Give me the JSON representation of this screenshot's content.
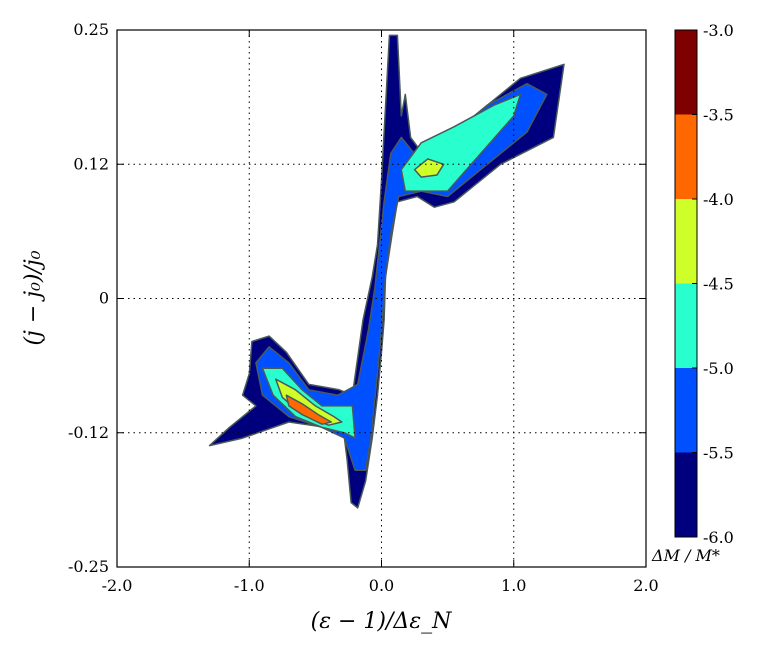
{
  "chart_data": {
    "type": "heatmap",
    "title": "",
    "xlabel": "(ε − 1)/Δε_N",
    "ylabel": "(j − j₀)/j₀",
    "xlim": [
      -2.0,
      2.0
    ],
    "ylim": [
      -0.25,
      0.25
    ],
    "x_ticks": [
      "-2.0",
      "-1.0",
      "0.0",
      "1.0",
      "2.0"
    ],
    "x_tick_values": [
      -2.0,
      -1.0,
      0.0,
      1.0,
      2.0
    ],
    "y_ticks": [
      "-0.25",
      "-0.12",
      "0",
      "0.12",
      "0.25"
    ],
    "y_tick_values": [
      -0.25,
      -0.125,
      0.0,
      0.125,
      0.25
    ],
    "grid": true,
    "colorbar": {
      "label": "ΔM / M*",
      "levels": [
        -6.0,
        -5.5,
        -5.0,
        -4.5,
        -4.0,
        -3.5,
        -3.0
      ],
      "tick_labels": [
        "-6.0",
        "-5.5",
        "-5.0",
        "-4.5",
        "-4.0",
        "-3.5",
        "-3.0"
      ],
      "colors": [
        "#00007f",
        "#0050ff",
        "#29ffce",
        "#ceff29",
        "#ff6800",
        "#7f0000"
      ]
    },
    "regions": [
      {
        "level": -6.0,
        "polygon": [
          [
            0.0,
            0.11
          ],
          [
            0.06,
            0.245
          ],
          [
            0.12,
            0.245
          ],
          [
            0.15,
            0.17
          ],
          [
            0.18,
            0.19
          ],
          [
            0.22,
            0.15
          ],
          [
            0.4,
            0.12
          ],
          [
            0.75,
            0.175
          ],
          [
            1.05,
            0.205
          ],
          [
            1.38,
            0.218
          ],
          [
            1.3,
            0.15
          ],
          [
            0.9,
            0.125
          ],
          [
            0.55,
            0.09
          ],
          [
            0.4,
            0.085
          ],
          [
            0.27,
            0.095
          ],
          [
            0.12,
            0.09
          ],
          [
            0.08,
            0.06
          ],
          [
            0.03,
            0.02
          ],
          [
            0.02,
            -0.02
          ],
          [
            0.0,
            -0.05
          ],
          [
            -0.03,
            -0.09
          ],
          [
            -0.07,
            -0.13
          ],
          [
            -0.12,
            -0.17
          ],
          [
            -0.18,
            -0.195
          ],
          [
            -0.23,
            -0.19
          ],
          [
            -0.26,
            -0.15
          ],
          [
            -0.3,
            -0.11
          ],
          [
            -0.42,
            -0.12
          ],
          [
            -0.7,
            -0.115
          ],
          [
            -1.05,
            -0.13
          ],
          [
            -1.3,
            -0.137
          ],
          [
            -1.15,
            -0.12
          ],
          [
            -0.95,
            -0.1
          ],
          [
            -1.05,
            -0.09
          ],
          [
            -1.0,
            -0.07
          ],
          [
            -0.98,
            -0.04
          ],
          [
            -0.85,
            -0.035
          ],
          [
            -0.72,
            -0.05
          ],
          [
            -0.55,
            -0.08
          ],
          [
            -0.32,
            -0.085
          ],
          [
            -0.22,
            -0.09
          ],
          [
            -0.14,
            -0.02
          ],
          [
            -0.07,
            0.02
          ],
          [
            -0.03,
            0.05
          ]
        ]
      },
      {
        "level": -5.5,
        "polygon": [
          [
            0.02,
            0.09
          ],
          [
            0.07,
            0.135
          ],
          [
            0.15,
            0.15
          ],
          [
            0.28,
            0.13
          ],
          [
            0.5,
            0.15
          ],
          [
            0.8,
            0.18
          ],
          [
            1.1,
            0.2
          ],
          [
            1.25,
            0.19
          ],
          [
            1.1,
            0.155
          ],
          [
            0.75,
            0.12
          ],
          [
            0.5,
            0.095
          ],
          [
            0.3,
            0.1
          ],
          [
            0.13,
            0.095
          ],
          [
            0.07,
            0.06
          ],
          [
            0.03,
            0.02
          ],
          [
            0.0,
            -0.03
          ],
          [
            -0.03,
            -0.07
          ],
          [
            -0.08,
            -0.13
          ],
          [
            -0.12,
            -0.16
          ],
          [
            -0.2,
            -0.16
          ],
          [
            -0.28,
            -0.13
          ],
          [
            -0.45,
            -0.12
          ],
          [
            -0.7,
            -0.11
          ],
          [
            -0.9,
            -0.09
          ],
          [
            -0.95,
            -0.06
          ],
          [
            -0.85,
            -0.045
          ],
          [
            -0.7,
            -0.06
          ],
          [
            -0.55,
            -0.085
          ],
          [
            -0.33,
            -0.09
          ],
          [
            -0.18,
            -0.08
          ],
          [
            -0.1,
            -0.03
          ],
          [
            -0.05,
            0.01
          ]
        ]
      },
      {
        "level": -5.0,
        "polygon": [
          [
            0.15,
            0.12
          ],
          [
            0.3,
            0.145
          ],
          [
            0.55,
            0.16
          ],
          [
            0.85,
            0.18
          ],
          [
            1.05,
            0.19
          ],
          [
            1.0,
            0.17
          ],
          [
            0.75,
            0.135
          ],
          [
            0.5,
            0.1
          ],
          [
            0.35,
            0.1
          ],
          [
            0.25,
            0.1
          ],
          [
            0.18,
            0.1
          ]
        ]
      },
      {
        "level": -5.0,
        "polygon": [
          [
            -0.9,
            -0.065
          ],
          [
            -0.75,
            -0.065
          ],
          [
            -0.6,
            -0.085
          ],
          [
            -0.45,
            -0.1
          ],
          [
            -0.32,
            -0.1
          ],
          [
            -0.22,
            -0.1
          ],
          [
            -0.2,
            -0.13
          ],
          [
            -0.28,
            -0.125
          ],
          [
            -0.45,
            -0.12
          ],
          [
            -0.65,
            -0.11
          ],
          [
            -0.82,
            -0.09
          ]
        ]
      },
      {
        "level": -4.5,
        "polygon": [
          [
            0.25,
            0.12
          ],
          [
            0.35,
            0.13
          ],
          [
            0.47,
            0.125
          ],
          [
            0.42,
            0.115
          ],
          [
            0.3,
            0.113
          ]
        ]
      },
      {
        "level": -4.5,
        "polygon": [
          [
            -0.8,
            -0.075
          ],
          [
            -0.65,
            -0.085
          ],
          [
            -0.5,
            -0.1
          ],
          [
            -0.36,
            -0.11
          ],
          [
            -0.3,
            -0.115
          ],
          [
            -0.4,
            -0.118
          ],
          [
            -0.6,
            -0.108
          ],
          [
            -0.75,
            -0.092
          ]
        ]
      },
      {
        "level": -4.0,
        "polygon": [
          [
            -0.72,
            -0.09
          ],
          [
            -0.6,
            -0.098
          ],
          [
            -0.48,
            -0.108
          ],
          [
            -0.38,
            -0.115
          ],
          [
            -0.45,
            -0.117
          ],
          [
            -0.6,
            -0.108
          ],
          [
            -0.7,
            -0.1
          ]
        ]
      }
    ]
  }
}
